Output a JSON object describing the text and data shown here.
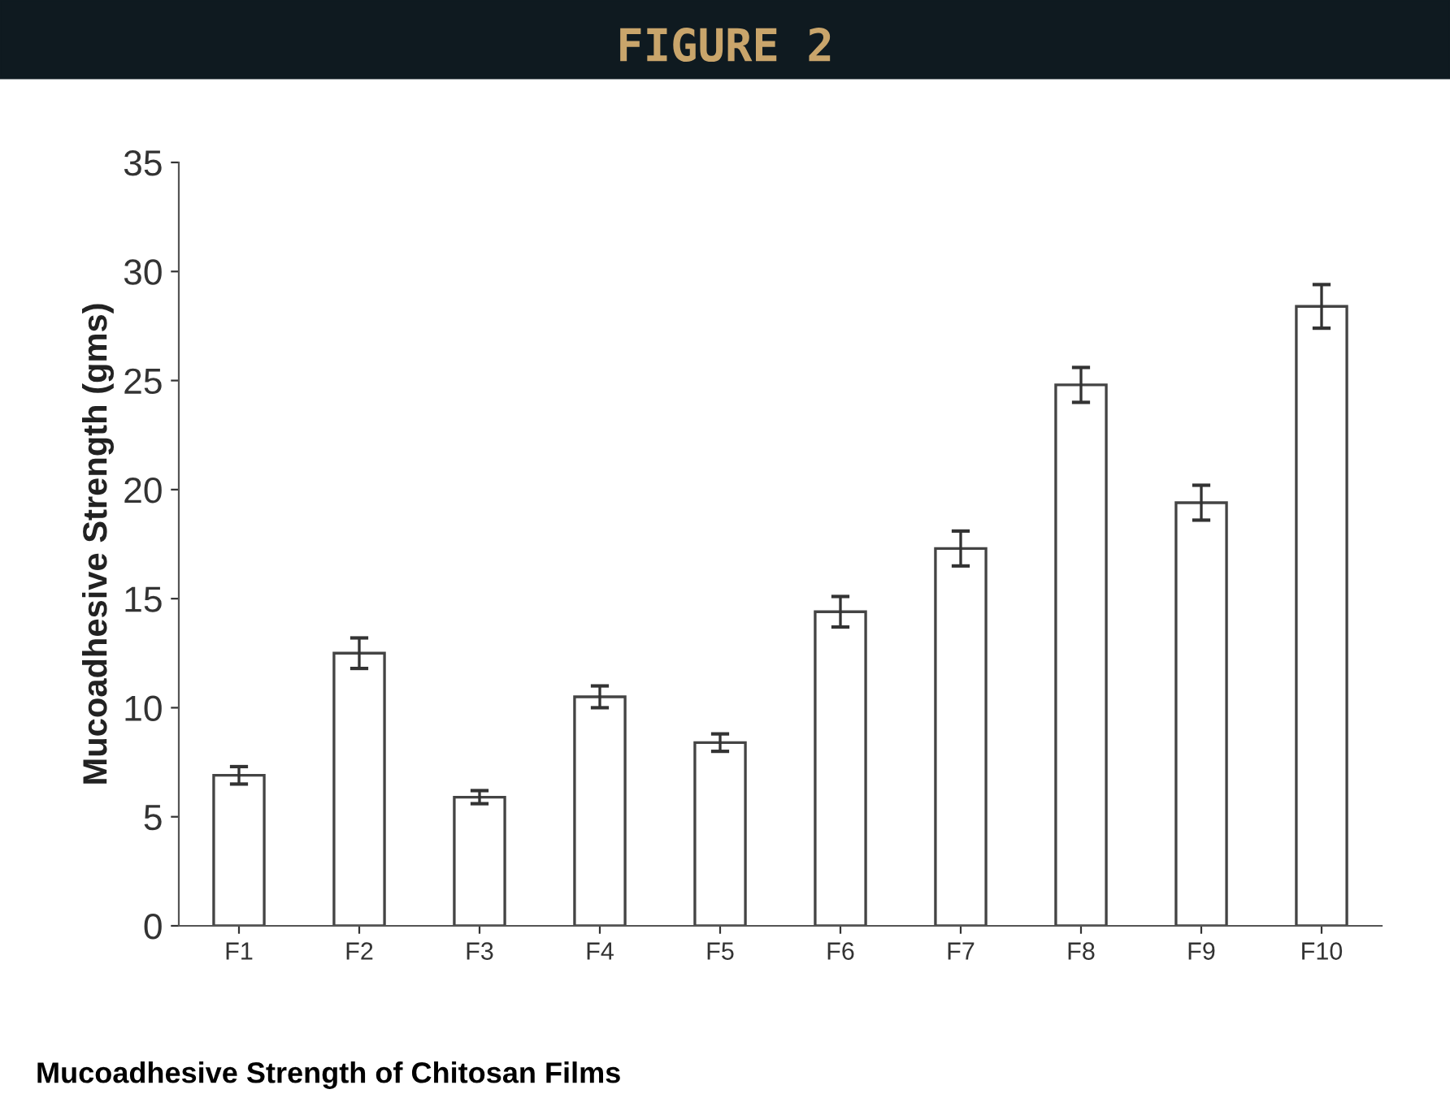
{
  "chart_data": {
    "type": "bar",
    "title": "FIGURE 2",
    "ylabel": "Mucoadhesive Strength (gms)",
    "categories": [
      "F1",
      "F2",
      "F3",
      "F4",
      "F5",
      "F6",
      "F7",
      "F8",
      "F9",
      "F10"
    ],
    "values": [
      6.9,
      12.5,
      5.9,
      10.5,
      8.4,
      14.4,
      17.3,
      24.8,
      19.4,
      28.4
    ],
    "errors": [
      0.4,
      0.7,
      0.3,
      0.5,
      0.4,
      0.7,
      0.8,
      0.8,
      0.8,
      1.0
    ],
    "color": "#ffffff",
    "ylim": [
      0,
      35
    ],
    "yticks": [
      0,
      5,
      10,
      15,
      20,
      25,
      30,
      35
    ],
    "grid": false,
    "annotations": [
      "Mucoadhesive Strength of Chitosan Films"
    ]
  }
}
